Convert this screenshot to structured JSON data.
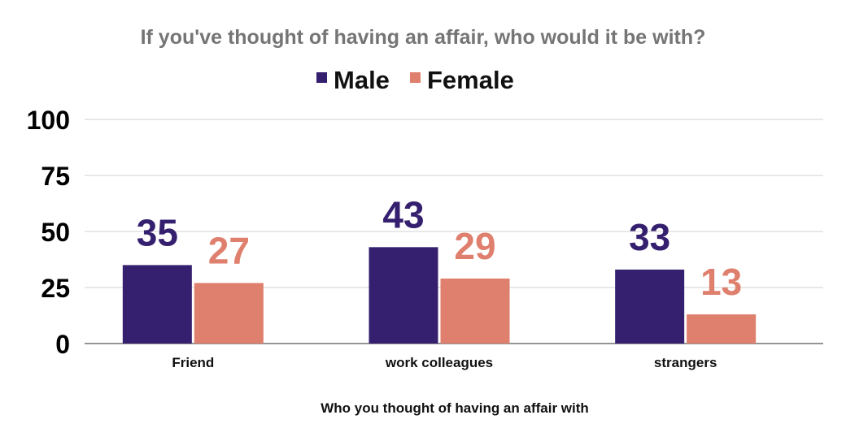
{
  "chart_data": {
    "type": "bar",
    "title": "If you've thought of having an affair, who would it be with?",
    "xlabel": "Who you thought of having an affair with",
    "ylabel": "",
    "categories": [
      "Friend",
      "work colleagues",
      "strangers"
    ],
    "series": [
      {
        "name": "Male",
        "color": "#35206f",
        "values": [
          35,
          43,
          33
        ]
      },
      {
        "name": "Female",
        "color": "#df7f6d",
        "values": [
          27,
          29,
          13
        ]
      }
    ],
    "ylim": [
      0,
      100
    ],
    "yticks": [
      0,
      25,
      50,
      75,
      100
    ],
    "grid": true,
    "legend_position": "top-center",
    "data_labels": true
  }
}
